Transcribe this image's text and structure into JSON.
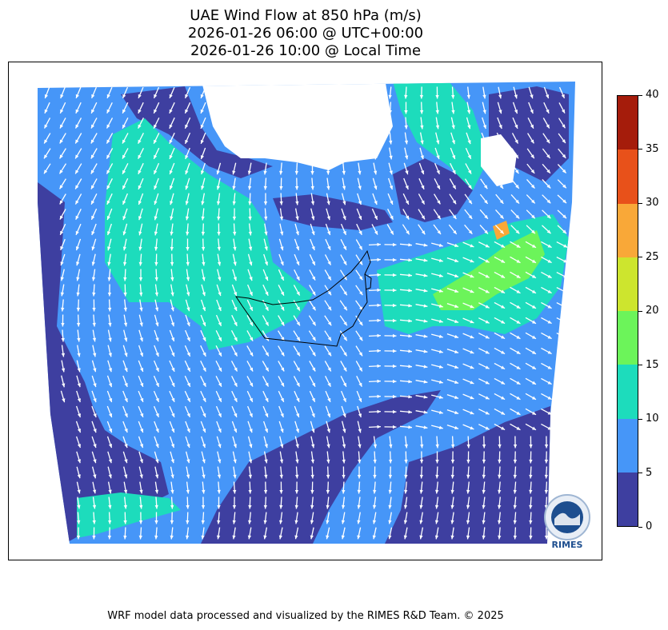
{
  "title": {
    "line1": "UAE Wind Flow at 850 hPa (m/s)",
    "line2": "2026-01-26 06:00 @ UTC+00:00",
    "line3": "2026-01-26 10:00 @ Local Time"
  },
  "colorbar": {
    "ticks": [
      "40",
      "35",
      "30",
      "25",
      "20",
      "15",
      "10",
      "5",
      "0"
    ],
    "colors": [
      "#a51c0b",
      "#e8511a",
      "#f9a838",
      "#cde52e",
      "#6cf45a",
      "#1ddcbc",
      "#4696f8",
      "#3e3fa0"
    ]
  },
  "map": {
    "land_mask_color": "#ffffff",
    "arrow_color": "#ffffff",
    "border_color": "#000000"
  },
  "logo": {
    "text": "RIMES"
  },
  "credit": "WRF model data processed and visualized by the RIMES R&D Team. © 2025"
}
